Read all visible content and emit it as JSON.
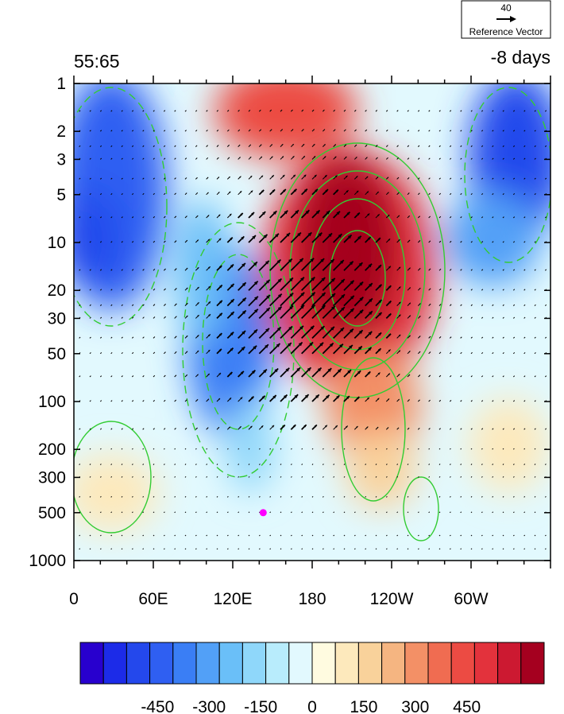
{
  "chart_data": {
    "type": "heatmap",
    "title_left": "55:65",
    "title_right": "-8 days",
    "reference_vector": {
      "magnitude": "40",
      "label": "Reference Vector"
    },
    "x_ticks": [
      "0",
      "60E",
      "120E",
      "180",
      "120W",
      "60W"
    ],
    "x_tick_values": [
      0,
      60,
      120,
      180,
      240,
      300
    ],
    "xlim": [
      0,
      360
    ],
    "y_ticks": [
      "1",
      "2",
      "3",
      "5",
      "10",
      "20",
      "30",
      "50",
      "100",
      "200",
      "300",
      "500",
      "1000"
    ],
    "y_tick_values": [
      1,
      2,
      3,
      5,
      10,
      20,
      30,
      50,
      100,
      200,
      300,
      500,
      1000
    ],
    "ylim": [
      1,
      1000
    ],
    "y_scale": "log",
    "y_reversed": true,
    "marker": {
      "lon": 143,
      "pressure": 500,
      "color": "#ff00ff"
    },
    "colorbar": {
      "levels": [
        -525,
        -450,
        -375,
        -300,
        -225,
        -150,
        -75,
        0,
        75,
        150,
        225,
        300,
        375,
        450,
        525
      ],
      "colors": [
        "#2800ce",
        "#1c2be8",
        "#2448ec",
        "#2f5ff2",
        "#3a7ef5",
        "#52a0f7",
        "#6abff8",
        "#8fd7fa",
        "#b8ecfc",
        "#e2f9fe",
        "#fffbe0",
        "#fde9bc",
        "#f9d29b",
        "#f5b581",
        "#f39066",
        "#f06c51",
        "#ec4b43",
        "#e3323c",
        "#cc1931",
        "#a5001f"
      ],
      "tick_labels": [
        "-450",
        "-300",
        "-150",
        "0",
        "150",
        "300",
        "450"
      ],
      "tick_values": [
        -450,
        -300,
        -150,
        0,
        150,
        300,
        450
      ]
    },
    "field_anomalies": [
      {
        "name": "positive-core",
        "lon": 205,
        "pressure": 25,
        "value": 560
      },
      {
        "name": "negative-upper-west",
        "lon": 40,
        "pressure": 8,
        "value": -420
      },
      {
        "name": "negative-upper-east",
        "lon": 330,
        "pressure": 3,
        "value": -480
      },
      {
        "name": "negative-mid",
        "lon": 120,
        "pressure": 60,
        "value": -430
      }
    ],
    "contour_color": "#33cc33"
  }
}
